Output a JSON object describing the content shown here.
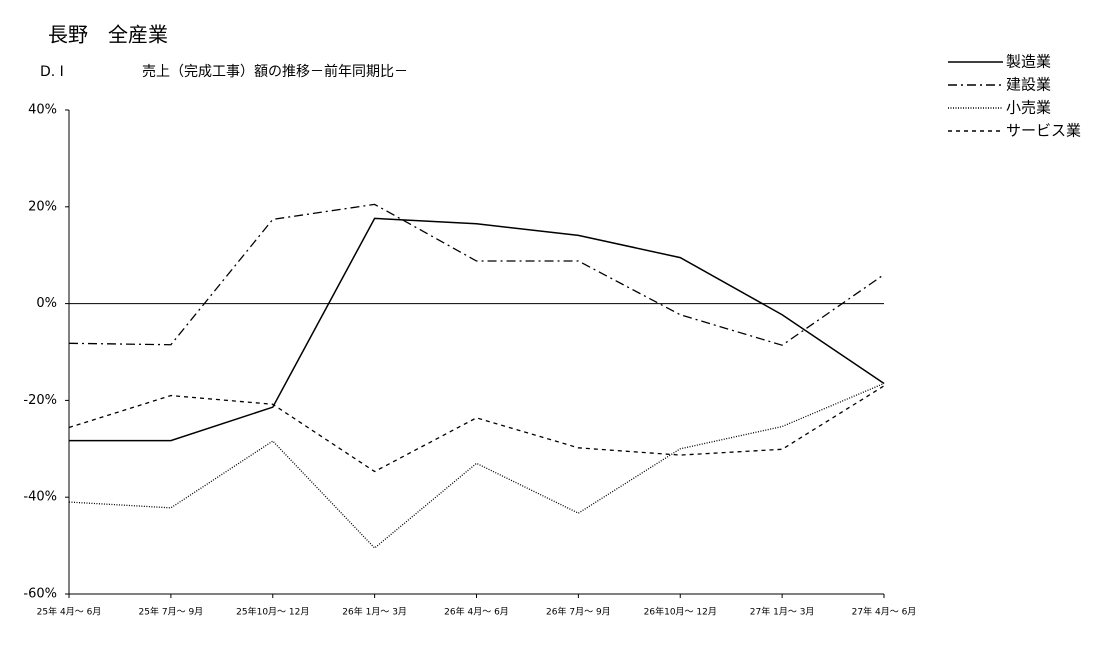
{
  "chart_data": {
    "type": "line",
    "title": "長野　全産業",
    "subtitle_left": "D. I",
    "subtitle": "売上（完成工事）額の推移－前年同期比－",
    "categories": [
      "25年 4月～ 6月",
      "25年 7月～ 9月",
      "25年10月～ 12月",
      "26年 1月～ 3月",
      "26年 4月～ 6月",
      "26年 7月～ 9月",
      "26年10月～ 12月",
      "27年 1月～ 3月",
      "27年 4月～ 6月"
    ],
    "series": [
      {
        "name": "製造業",
        "color": "#000000",
        "dash": "solid",
        "values": [
          -28.3,
          -28.3,
          -21.4,
          17.6,
          16.5,
          14.1,
          9.5,
          -2.3,
          -16.5
        ]
      },
      {
        "name": "建設業",
        "color": "#000000",
        "dash": "dashdot",
        "values": [
          -8.2,
          -8.5,
          17.4,
          20.5,
          8.8,
          8.8,
          -2.3,
          -8.6,
          6.0
        ]
      },
      {
        "name": "小売業",
        "color": "#000000",
        "dash": "dotted",
        "values": [
          -41.0,
          -42.2,
          -28.4,
          -50.5,
          -33.0,
          -43.3,
          -30.0,
          -25.4,
          -16.5
        ]
      },
      {
        "name": "サービス業",
        "color": "#000000",
        "dash": "dashed",
        "values": [
          -25.6,
          -19.0,
          -20.8,
          -34.7,
          -23.6,
          -29.8,
          -31.3,
          -30.1,
          -17.0
        ]
      }
    ],
    "ylim": [
      -60,
      40
    ],
    "yticks": [
      {
        "value": -60,
        "label": "-60%"
      },
      {
        "value": -40,
        "label": "-40%"
      },
      {
        "value": -20,
        "label": "-20%"
      },
      {
        "value": 0,
        "label": "0%"
      },
      {
        "value": 20,
        "label": "20%"
      },
      {
        "value": 40,
        "label": "40%"
      }
    ],
    "grid": false,
    "legend": "top-right"
  }
}
